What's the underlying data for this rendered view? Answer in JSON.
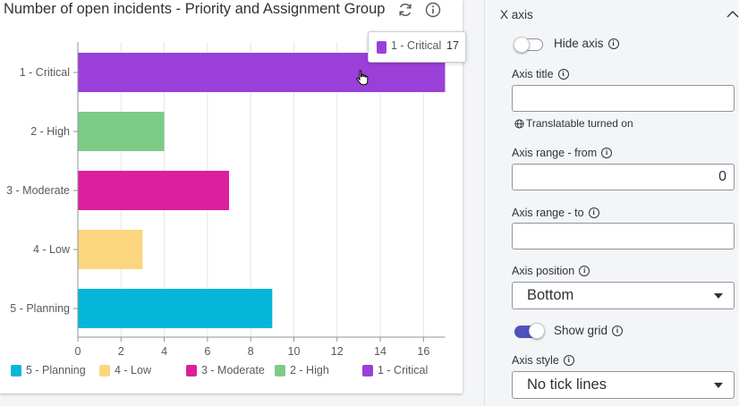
{
  "chart": {
    "title": "Number of open incidents - Priority and Assignment Group",
    "refresh_icon": "refresh-icon",
    "info_icon": "info-icon"
  },
  "chart_data": {
    "type": "bar",
    "orientation": "horizontal",
    "categories": [
      "1 - Critical",
      "2 - High",
      "3 - Moderate",
      "4 - Low",
      "5 - Planning"
    ],
    "values": [
      17,
      4,
      7,
      3,
      9
    ],
    "colors": [
      "#9b3fd9",
      "#7ecb87",
      "#dc1f9d",
      "#fbd67e",
      "#06b6d8"
    ],
    "xlim": [
      0,
      17
    ],
    "xticks": [
      0,
      2,
      4,
      6,
      8,
      10,
      12,
      14,
      16
    ],
    "grid": true,
    "legend_position": "bottom",
    "legend": [
      {
        "label": "5 - Planning",
        "color": "#06b6d8"
      },
      {
        "label": "4 - Low",
        "color": "#fbd67e"
      },
      {
        "label": "3 - Moderate",
        "color": "#dc1f9d"
      },
      {
        "label": "2 - High",
        "color": "#7ecb87"
      },
      {
        "label": "1 - Critical",
        "color": "#9b3fd9"
      }
    ],
    "tooltip": {
      "label": "1 - Critical",
      "value": "17",
      "color": "#9b3fd9"
    }
  },
  "panel": {
    "section_title": "X axis",
    "hide_axis_label": "Hide axis",
    "hide_axis_on": false,
    "axis_title_label": "Axis title",
    "axis_title_value": "",
    "translatable_note": "Translatable turned on",
    "range_from_label": "Axis range - from",
    "range_from_value": "0",
    "range_to_label": "Axis range - to",
    "range_to_value": "",
    "position_label": "Axis position",
    "position_value": "Bottom",
    "show_grid_label": "Show grid",
    "show_grid_on": true,
    "style_label": "Axis style",
    "style_value": "No tick lines"
  }
}
